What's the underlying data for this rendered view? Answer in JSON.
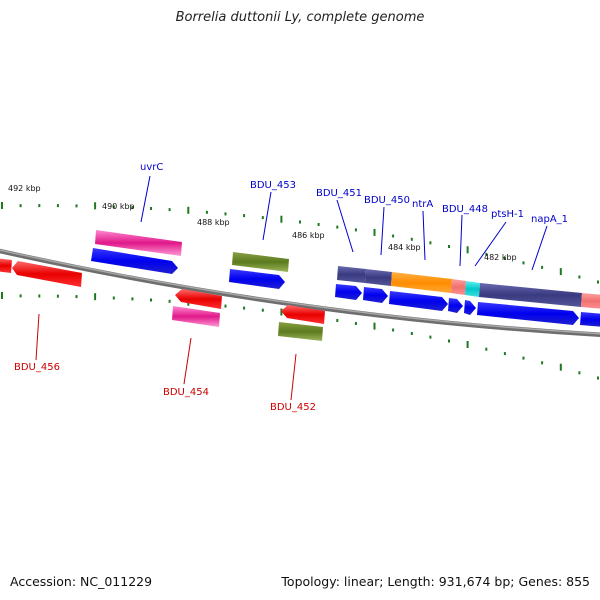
{
  "title": "Borrelia duttonii Ly, complete genome",
  "footer": {
    "accession": "Accession: NC_011229",
    "summary": "Topology: linear; Length: 931,674 bp; Genes: 855"
  },
  "colors": {
    "ticks": "#1e7a1e",
    "backbone": "#808080",
    "blue_label": "#0000cc",
    "red_label": "#cc0000"
  },
  "scale_labels": [
    {
      "text": "492 kbp"
    },
    {
      "text": "490 kbp"
    },
    {
      "text": "488 kbp"
    },
    {
      "text": "486 kbp"
    },
    {
      "text": "484 kbp"
    },
    {
      "text": "482 kbp"
    }
  ],
  "gene_labels": [
    {
      "text": "uvrC",
      "color": "blue"
    },
    {
      "text": "BDU_453",
      "color": "blue"
    },
    {
      "text": "BDU_451",
      "color": "blue"
    },
    {
      "text": "BDU_450",
      "color": "blue"
    },
    {
      "text": "ntrA",
      "color": "blue"
    },
    {
      "text": "BDU_448",
      "color": "blue"
    },
    {
      "text": "ptsH-1",
      "color": "blue"
    },
    {
      "text": "napA_1",
      "color": "blue"
    },
    {
      "text": "BDU_456",
      "color": "red"
    },
    {
      "text": "BDU_454",
      "color": "red"
    },
    {
      "text": "BDU_452",
      "color": "red"
    }
  ]
}
